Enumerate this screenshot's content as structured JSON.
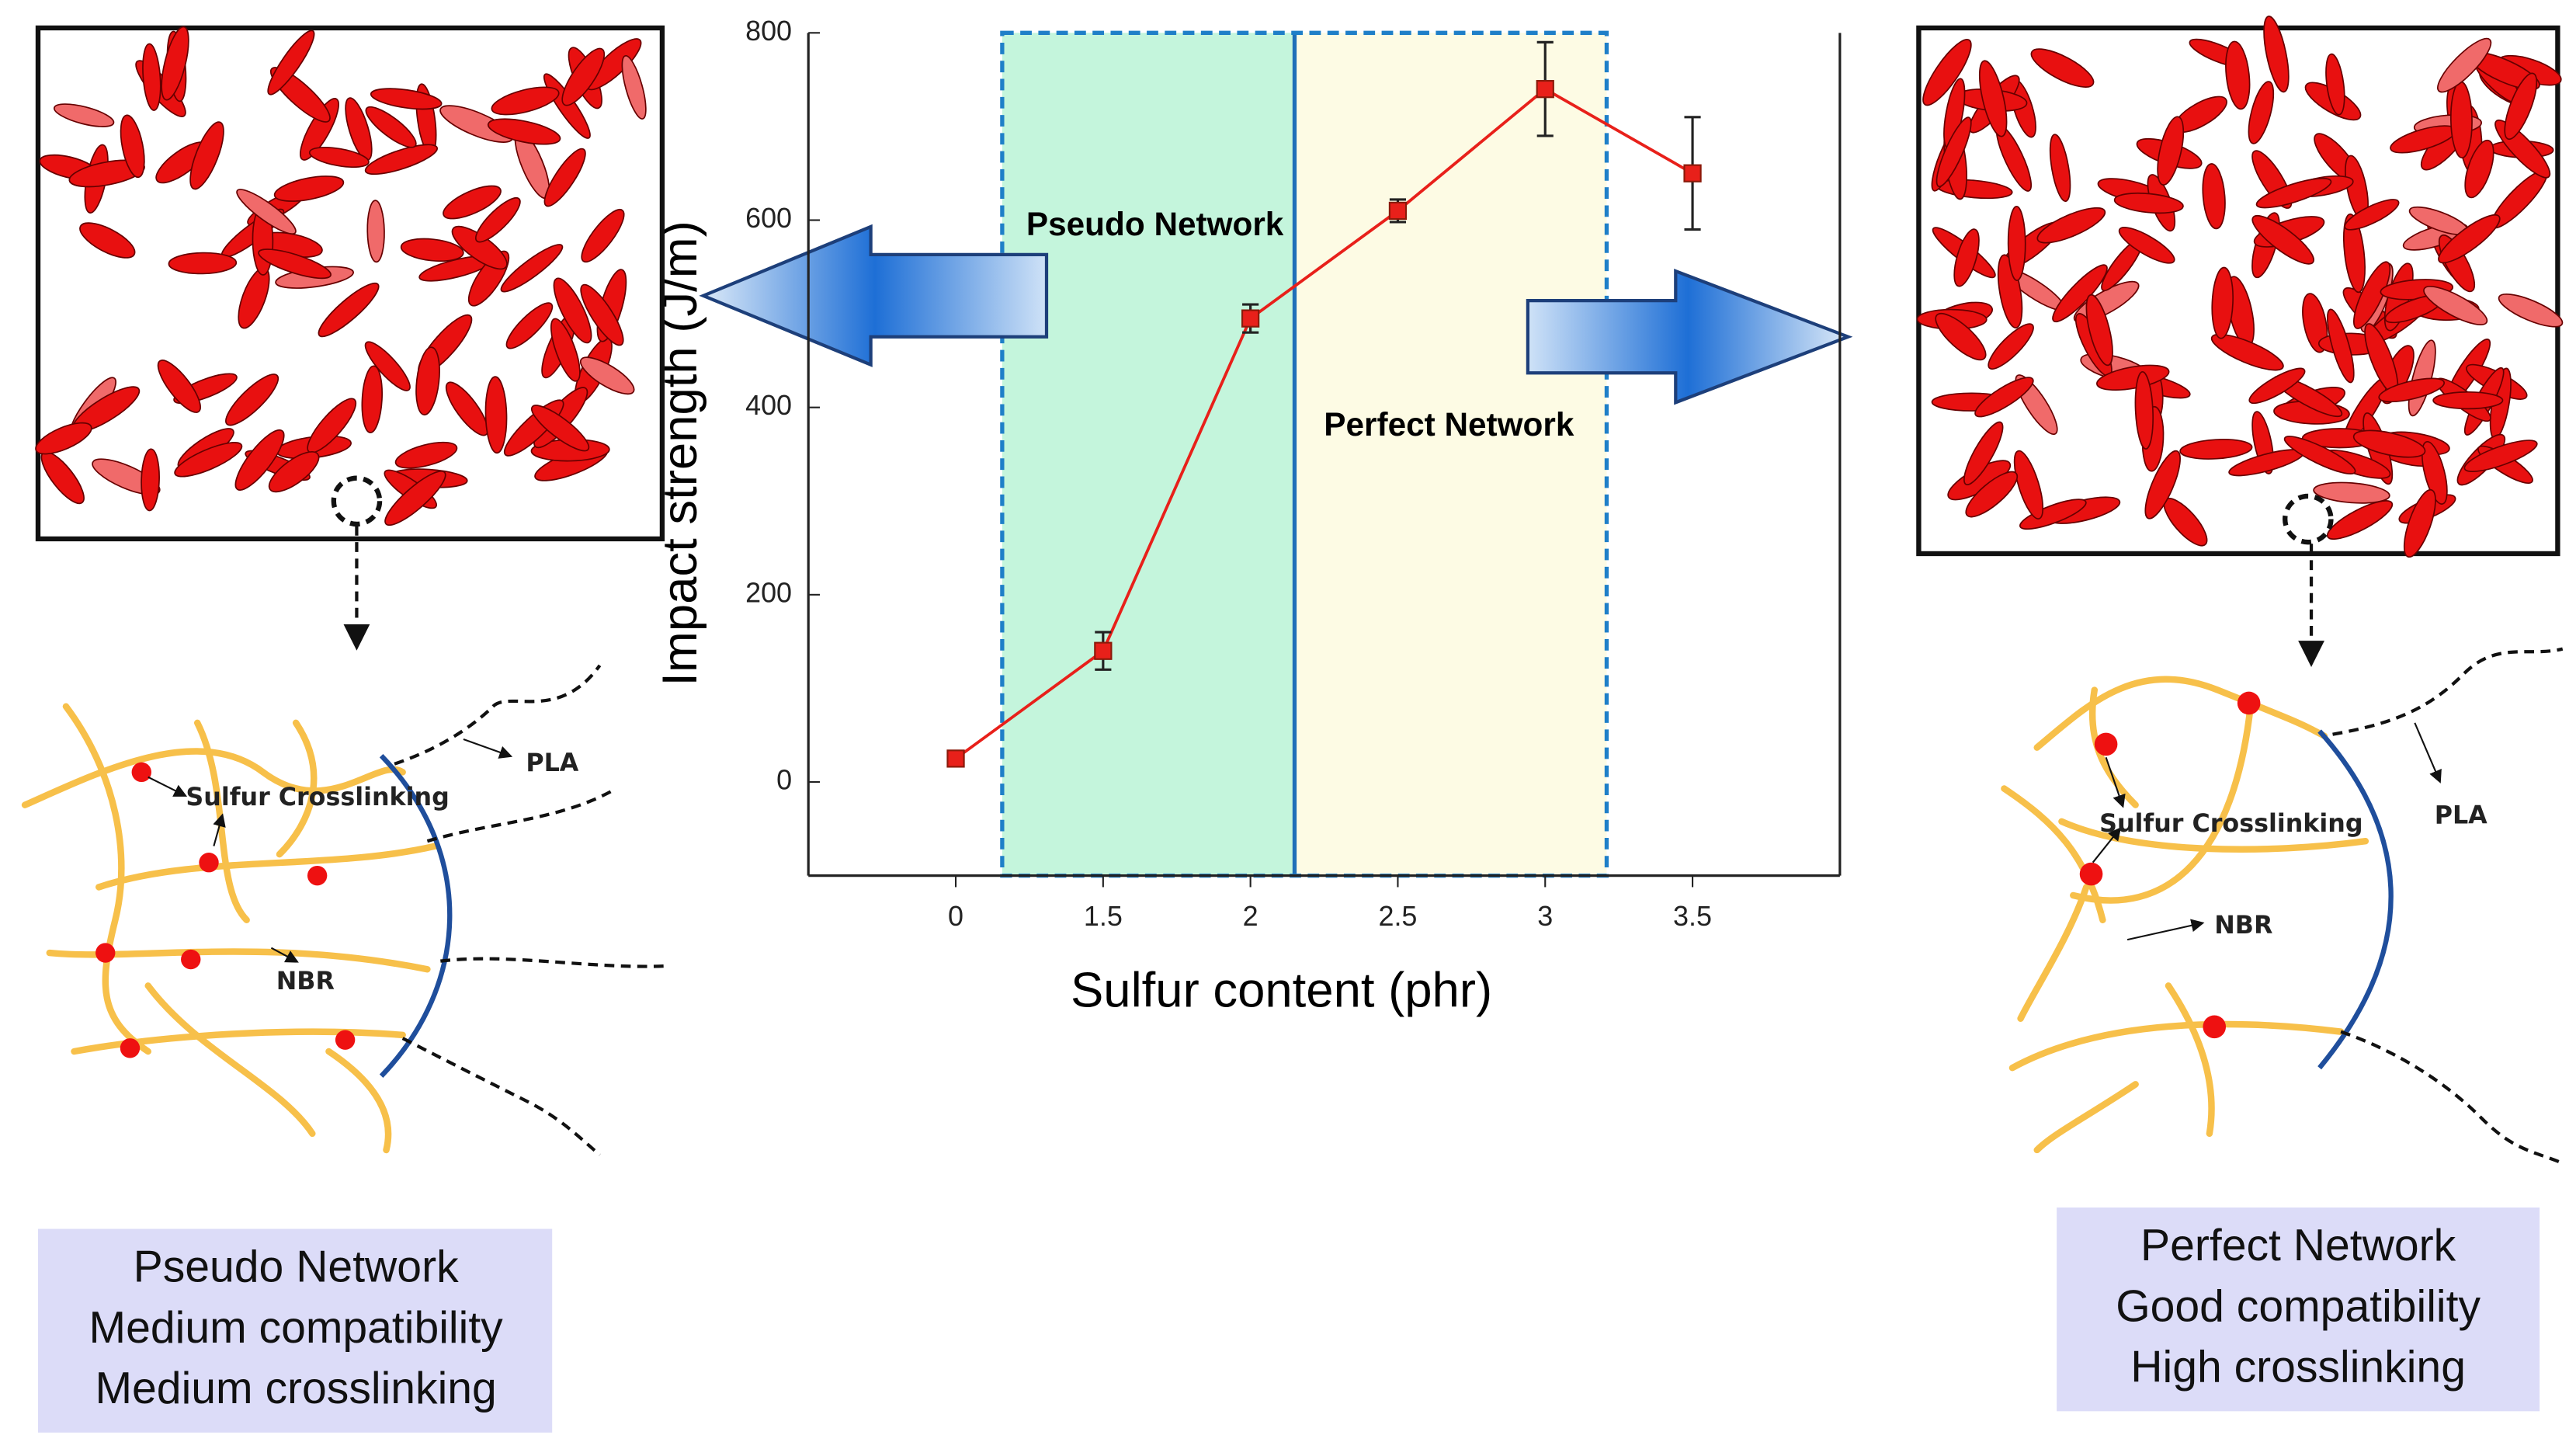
{
  "chart_data": {
    "type": "line",
    "xlabel": "Sulfur content (phr)",
    "ylabel": "Impact strength (J/m)",
    "categories": [
      "0",
      "1.5",
      "2",
      "2.5",
      "3",
      "3.5"
    ],
    "values": [
      25,
      140,
      495,
      610,
      740,
      650
    ],
    "errors": [
      8,
      20,
      15,
      12,
      50,
      60
    ],
    "color": "#e8201a",
    "ylim": [
      -100,
      800
    ],
    "yticks": [
      0,
      200,
      400,
      600,
      800
    ],
    "annotations": [
      "Pseudo Network",
      "Perfect Network"
    ]
  },
  "left_panel": {
    "crosslinking": "Sulfur Crosslinking",
    "pla": "PLA",
    "nbr": "NBR",
    "summary": [
      "Pseudo Network",
      "Medium compatibility",
      "Medium crosslinking"
    ]
  },
  "right_panel": {
    "crosslinking": "Sulfur Crosslinking",
    "pla": "PLA",
    "nbr": "NBR",
    "summary": [
      "Perfect Network",
      "Good compatibility",
      "High crosslinking"
    ]
  }
}
